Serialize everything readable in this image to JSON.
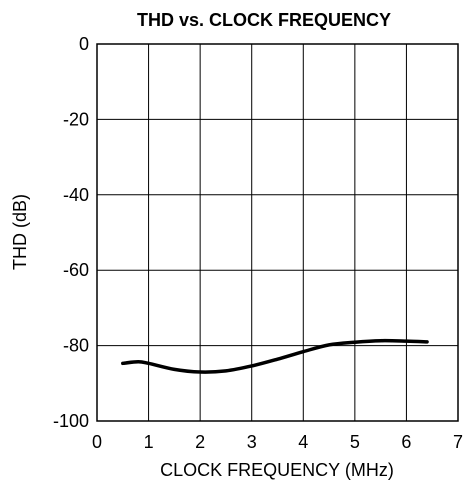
{
  "chart_data": {
    "type": "line",
    "title": "THD vs. CLOCK FREQUENCY",
    "xlabel": "CLOCK FREQUENCY (MHz)",
    "ylabel": "THD (dB)",
    "xlim": [
      0,
      7
    ],
    "ylim": [
      -100,
      0
    ],
    "xticks": [
      0,
      1,
      2,
      3,
      4,
      5,
      6,
      7
    ],
    "yticks": [
      0,
      -20,
      -40,
      -60,
      -80,
      -100
    ],
    "grid": true,
    "series": [
      {
        "x": [
          0.5,
          0.8,
          1.0,
          1.5,
          2.0,
          2.5,
          3.0,
          3.5,
          4.0,
          4.5,
          5.0,
          5.5,
          6.0,
          6.4
        ],
        "y": [
          -84.7,
          -84.3,
          -84.7,
          -86.3,
          -87.0,
          -86.7,
          -85.4,
          -83.6,
          -81.6,
          -79.8,
          -79.1,
          -78.7,
          -78.8,
          -79.0
        ]
      }
    ],
    "colors": {
      "line": "#000000",
      "grid": "#000000",
      "background": "#ffffff"
    }
  }
}
